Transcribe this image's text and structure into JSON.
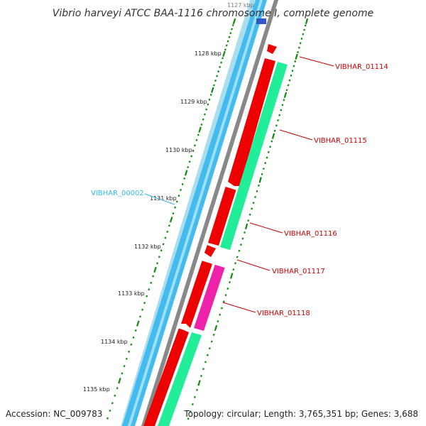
{
  "title": "Vibrio harveyi ATCC BAA-1116 chromosome I, complete genome",
  "accession": "Accession: NC_009783",
  "topology": "Topology: circular; Length: 3,765,351 bp; Genes: 3,688",
  "ruler_labels": [
    "1127 kbp",
    "1128 kbp",
    "1129 kbp",
    "1130 kbp",
    "1131 kbp",
    "1132 kbp",
    "1133 kbp",
    "1134 kbp",
    "1135 kbp"
  ],
  "gene_labels": [
    {
      "text": "VIBHAR_01114",
      "color": "#cc0000"
    },
    {
      "text": "VIBHAR_01115",
      "color": "#cc0000"
    },
    {
      "text": "VIBHAR_01116",
      "color": "#cc0000"
    },
    {
      "text": "VIBHAR_01117",
      "color": "#cc0000"
    },
    {
      "text": "VIBHAR_01118",
      "color": "#cc0000"
    },
    {
      "text": "VIBHAR_00002",
      "color": "#33bbee"
    }
  ],
  "colors": {
    "cds_red": "#ee0000",
    "rrna_green": "#22ee99",
    "trna_magenta": "#ee22aa",
    "backbone_blue": "#44bbee",
    "backbone_gray": "#888888",
    "tick_green": "#118811"
  }
}
